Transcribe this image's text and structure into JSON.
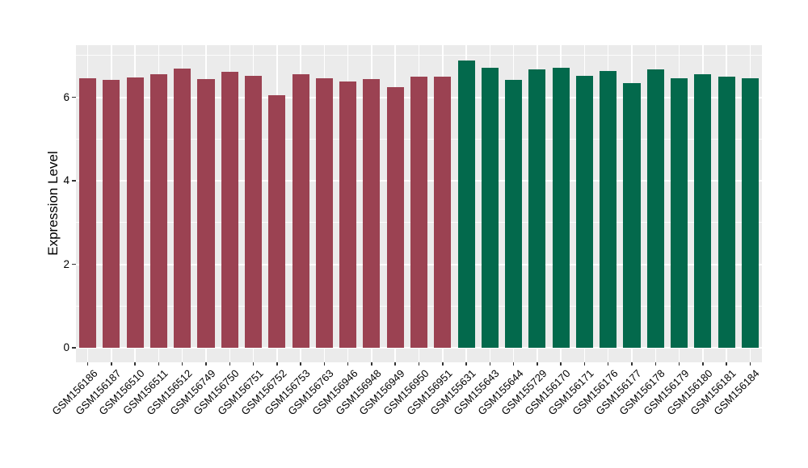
{
  "chart_data": {
    "type": "bar",
    "title": "",
    "ylabel": "Expression Level",
    "xlabel": "",
    "ylim": [
      0,
      7.25
    ],
    "yticks": [
      0,
      2,
      4,
      6
    ],
    "yminor": [
      1,
      3,
      5,
      7
    ],
    "legend_position": "none",
    "panel_background": "#EBEBEB",
    "gridline_color": "#FFFFFF",
    "tick_color": "#333333",
    "text_color": "#000000",
    "group_colors": {
      "red": "#9B4252",
      "green": "#03694C"
    },
    "bars": [
      {
        "label": "GSM156186",
        "value": 6.45,
        "group": "red"
      },
      {
        "label": "GSM156187",
        "value": 6.42,
        "group": "red"
      },
      {
        "label": "GSM156510",
        "value": 6.48,
        "group": "red"
      },
      {
        "label": "GSM156511",
        "value": 6.56,
        "group": "red"
      },
      {
        "label": "GSM156512",
        "value": 6.69,
        "group": "red"
      },
      {
        "label": "GSM156749",
        "value": 6.44,
        "group": "red"
      },
      {
        "label": "GSM156750",
        "value": 6.6,
        "group": "red"
      },
      {
        "label": "GSM156751",
        "value": 6.52,
        "group": "red"
      },
      {
        "label": "GSM156752",
        "value": 6.05,
        "group": "red"
      },
      {
        "label": "GSM156753",
        "value": 6.55,
        "group": "red"
      },
      {
        "label": "GSM156763",
        "value": 6.45,
        "group": "red"
      },
      {
        "label": "GSM156946",
        "value": 6.37,
        "group": "red"
      },
      {
        "label": "GSM156948",
        "value": 6.43,
        "group": "red"
      },
      {
        "label": "GSM156949",
        "value": 6.24,
        "group": "red"
      },
      {
        "label": "GSM156950",
        "value": 6.5,
        "group": "red"
      },
      {
        "label": "GSM156951",
        "value": 6.5,
        "group": "red"
      },
      {
        "label": "GSM155631",
        "value": 6.88,
        "group": "green"
      },
      {
        "label": "GSM155643",
        "value": 6.71,
        "group": "green"
      },
      {
        "label": "GSM155644",
        "value": 6.41,
        "group": "green"
      },
      {
        "label": "GSM155729",
        "value": 6.67,
        "group": "green"
      },
      {
        "label": "GSM156170",
        "value": 6.71,
        "group": "green"
      },
      {
        "label": "GSM156171",
        "value": 6.52,
        "group": "green"
      },
      {
        "label": "GSM156176",
        "value": 6.62,
        "group": "green"
      },
      {
        "label": "GSM156177",
        "value": 6.33,
        "group": "green"
      },
      {
        "label": "GSM156178",
        "value": 6.67,
        "group": "green"
      },
      {
        "label": "GSM156179",
        "value": 6.46,
        "group": "green"
      },
      {
        "label": "GSM156180",
        "value": 6.55,
        "group": "green"
      },
      {
        "label": "GSM156181",
        "value": 6.5,
        "group": "green"
      },
      {
        "label": "GSM156184",
        "value": 6.45,
        "group": "green"
      }
    ]
  }
}
